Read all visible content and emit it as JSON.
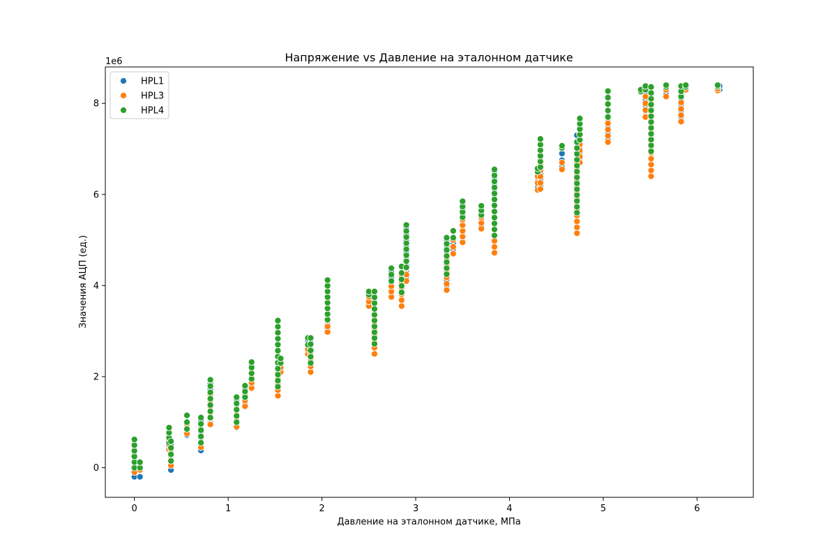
{
  "chart_data": {
    "type": "scatter",
    "title": "Напряжение vs Давление на эталонном датчике",
    "xlabel": "Давление на эталонном датчике, МПа",
    "ylabel": "Значения АЦП (ед.)",
    "y_multiplier": "1e6",
    "xlim": [
      -0.31,
      6.6
    ],
    "ylim": [
      -0.65,
      8.8
    ],
    "xticks": [
      "0",
      "1",
      "2",
      "3",
      "4",
      "5",
      "6"
    ],
    "yticks": [
      "0",
      "2",
      "4",
      "6",
      "8"
    ],
    "xtick_values": [
      0,
      1,
      2,
      3,
      4,
      5,
      6
    ],
    "ytick_values": [
      0,
      2,
      4,
      6,
      8
    ],
    "grid": false,
    "legend": "top-left",
    "series": [
      {
        "name": "HPL1",
        "color": "#1f77b4",
        "clusters": [
          {
            "x": 0.0,
            "ymin": -0.2,
            "ymax": 0.5
          },
          {
            "x": 0.06,
            "ymin": -0.2,
            "ymax": 0.1
          },
          {
            "x": 0.37,
            "ymin": 0.5,
            "ymax": 0.75
          },
          {
            "x": 0.39,
            "ymin": -0.05,
            "ymax": 0.5
          },
          {
            "x": 0.56,
            "ymin": 0.72,
            "ymax": 1.0
          },
          {
            "x": 0.71,
            "ymin": 0.38,
            "ymax": 1.05
          },
          {
            "x": 0.81,
            "ymin": 1.0,
            "ymax": 1.85
          },
          {
            "x": 1.09,
            "ymin": 0.88,
            "ymax": 1.5
          },
          {
            "x": 1.18,
            "ymin": 1.4,
            "ymax": 1.75
          },
          {
            "x": 1.25,
            "ymin": 1.8,
            "ymax": 2.25
          },
          {
            "x": 1.53,
            "ymin": 1.7,
            "ymax": 3.1
          },
          {
            "x": 1.56,
            "ymin": 2.2,
            "ymax": 2.35
          },
          {
            "x": 1.85,
            "ymin": 2.5,
            "ymax": 2.8
          },
          {
            "x": 1.88,
            "ymin": 2.2,
            "ymax": 2.75
          },
          {
            "x": 2.06,
            "ymin": 3.05,
            "ymax": 4.0
          },
          {
            "x": 2.5,
            "ymin": 3.6,
            "ymax": 3.85
          },
          {
            "x": 2.56,
            "ymin": 2.65,
            "ymax": 3.85
          },
          {
            "x": 2.74,
            "ymin": 3.9,
            "ymax": 4.3
          },
          {
            "x": 2.85,
            "ymin": 3.7,
            "ymax": 4.4
          },
          {
            "x": 2.9,
            "ymin": 4.2,
            "ymax": 5.25
          },
          {
            "x": 3.33,
            "ymin": 4.0,
            "ymax": 5.0
          },
          {
            "x": 3.4,
            "ymin": 4.8,
            "ymax": 5.2
          },
          {
            "x": 3.5,
            "ymin": 5.05,
            "ymax": 5.8
          },
          {
            "x": 3.7,
            "ymin": 5.3,
            "ymax": 5.75
          },
          {
            "x": 3.84,
            "ymin": 4.85,
            "ymax": 6.5
          },
          {
            "x": 4.3,
            "ymin": 6.15,
            "ymax": 6.55
          },
          {
            "x": 4.33,
            "ymin": 6.2,
            "ymax": 7.2
          },
          {
            "x": 4.56,
            "ymin": 6.6,
            "ymax": 7.05
          },
          {
            "x": 4.72,
            "ymin": 5.3,
            "ymax": 7.3
          },
          {
            "x": 4.75,
            "ymin": 6.8,
            "ymax": 7.6
          },
          {
            "x": 5.05,
            "ymin": 7.2,
            "ymax": 8.25
          },
          {
            "x": 5.45,
            "ymin": 7.7,
            "ymax": 8.35
          },
          {
            "x": 5.51,
            "ymin": 6.8,
            "ymax": 8.35
          },
          {
            "x": 5.67,
            "ymin": 8.2,
            "ymax": 8.38
          },
          {
            "x": 5.83,
            "ymin": 7.7,
            "ymax": 8.38
          },
          {
            "x": 5.88,
            "ymin": 8.3,
            "ymax": 8.38
          },
          {
            "x": 6.24,
            "ymin": 8.3,
            "ymax": 8.38
          }
        ]
      },
      {
        "name": "HPL3",
        "color": "#ff7f0e",
        "clusters": [
          {
            "x": 0.0,
            "ymin": -0.1,
            "ymax": 0.4
          },
          {
            "x": 0.06,
            "ymin": -0.05,
            "ymax": 0.1
          },
          {
            "x": 0.37,
            "ymin": 0.4,
            "ymax": 0.6
          },
          {
            "x": 0.39,
            "ymin": 0.05,
            "ymax": 0.4
          },
          {
            "x": 0.56,
            "ymin": 0.75,
            "ymax": 0.95
          },
          {
            "x": 0.71,
            "ymin": 0.45,
            "ymax": 0.95
          },
          {
            "x": 0.81,
            "ymin": 0.95,
            "ymax": 1.6
          },
          {
            "x": 1.09,
            "ymin": 0.9,
            "ymax": 1.3
          },
          {
            "x": 1.18,
            "ymin": 1.35,
            "ymax": 1.6
          },
          {
            "x": 1.25,
            "ymin": 1.75,
            "ymax": 2.1
          },
          {
            "x": 1.53,
            "ymin": 1.58,
            "ymax": 2.95
          },
          {
            "x": 1.56,
            "ymin": 2.1,
            "ymax": 2.3
          },
          {
            "x": 1.85,
            "ymin": 2.5,
            "ymax": 2.7
          },
          {
            "x": 1.88,
            "ymin": 2.1,
            "ymax": 2.6
          },
          {
            "x": 2.06,
            "ymin": 2.98,
            "ymax": 3.6
          },
          {
            "x": 2.5,
            "ymin": 3.55,
            "ymax": 3.75
          },
          {
            "x": 2.56,
            "ymin": 2.5,
            "ymax": 3.6
          },
          {
            "x": 2.74,
            "ymin": 3.75,
            "ymax": 4.1
          },
          {
            "x": 2.85,
            "ymin": 3.55,
            "ymax": 4.2
          },
          {
            "x": 2.9,
            "ymin": 4.1,
            "ymax": 4.8
          },
          {
            "x": 3.33,
            "ymin": 3.9,
            "ymax": 4.6
          },
          {
            "x": 3.4,
            "ymin": 4.7,
            "ymax": 5.0
          },
          {
            "x": 3.5,
            "ymin": 4.95,
            "ymax": 5.45
          },
          {
            "x": 3.7,
            "ymin": 5.25,
            "ymax": 5.5
          },
          {
            "x": 3.84,
            "ymin": 4.72,
            "ymax": 5.9
          },
          {
            "x": 4.3,
            "ymin": 6.1,
            "ymax": 6.4
          },
          {
            "x": 4.33,
            "ymin": 6.12,
            "ymax": 6.8
          },
          {
            "x": 4.56,
            "ymin": 6.55,
            "ymax": 6.7
          },
          {
            "x": 4.72,
            "ymin": 5.15,
            "ymax": 6.7
          },
          {
            "x": 4.75,
            "ymin": 6.7,
            "ymax": 7.1
          },
          {
            "x": 5.05,
            "ymin": 7.15,
            "ymax": 7.7
          },
          {
            "x": 5.45,
            "ymin": 7.7,
            "ymax": 8.15
          },
          {
            "x": 5.51,
            "ymin": 6.4,
            "ymax": 8.2
          },
          {
            "x": 5.67,
            "ymin": 8.15,
            "ymax": 8.3
          },
          {
            "x": 5.83,
            "ymin": 7.6,
            "ymax": 8.3
          },
          {
            "x": 5.88,
            "ymin": 8.3,
            "ymax": 8.36
          },
          {
            "x": 6.22,
            "ymin": 8.28,
            "ymax": 8.32
          }
        ]
      },
      {
        "name": "HPL4",
        "color": "#2ca02c",
        "clusters": [
          {
            "x": 0.0,
            "ymin": 0.0,
            "ymax": 0.62
          },
          {
            "x": 0.06,
            "ymin": 0.0,
            "ymax": 0.12
          },
          {
            "x": 0.37,
            "ymin": 0.55,
            "ymax": 0.88
          },
          {
            "x": 0.39,
            "ymin": 0.15,
            "ymax": 0.58
          },
          {
            "x": 0.56,
            "ymin": 0.85,
            "ymax": 1.15
          },
          {
            "x": 0.71,
            "ymin": 0.55,
            "ymax": 1.1
          },
          {
            "x": 0.81,
            "ymin": 1.1,
            "ymax": 1.93
          },
          {
            "x": 1.09,
            "ymin": 1.0,
            "ymax": 1.55
          },
          {
            "x": 1.18,
            "ymin": 1.55,
            "ymax": 1.8
          },
          {
            "x": 1.25,
            "ymin": 1.95,
            "ymax": 2.32
          },
          {
            "x": 1.53,
            "ymin": 1.78,
            "ymax": 3.23
          },
          {
            "x": 1.56,
            "ymin": 2.3,
            "ymax": 2.4
          },
          {
            "x": 1.85,
            "ymin": 2.7,
            "ymax": 2.85
          },
          {
            "x": 1.88,
            "ymin": 2.3,
            "ymax": 2.85
          },
          {
            "x": 2.06,
            "ymin": 3.25,
            "ymax": 4.12
          },
          {
            "x": 2.5,
            "ymin": 3.8,
            "ymax": 3.87
          },
          {
            "x": 2.56,
            "ymin": 2.72,
            "ymax": 3.87
          },
          {
            "x": 2.74,
            "ymin": 4.1,
            "ymax": 4.38
          },
          {
            "x": 2.85,
            "ymin": 3.85,
            "ymax": 4.42
          },
          {
            "x": 2.9,
            "ymin": 4.4,
            "ymax": 5.33
          },
          {
            "x": 3.33,
            "ymin": 4.25,
            "ymax": 5.05
          },
          {
            "x": 3.4,
            "ymin": 5.05,
            "ymax": 5.2
          },
          {
            "x": 3.5,
            "ymin": 5.5,
            "ymax": 5.85
          },
          {
            "x": 3.7,
            "ymin": 5.55,
            "ymax": 5.75
          },
          {
            "x": 3.84,
            "ymin": 5.1,
            "ymax": 6.55
          },
          {
            "x": 4.3,
            "ymin": 6.5,
            "ymax": 6.57
          },
          {
            "x": 4.33,
            "ymin": 6.6,
            "ymax": 7.22
          },
          {
            "x": 4.56,
            "ymin": 7.02,
            "ymax": 7.07
          },
          {
            "x": 4.72,
            "ymin": 5.6,
            "ymax": 7.15
          },
          {
            "x": 4.75,
            "ymin": 7.2,
            "ymax": 7.67
          },
          {
            "x": 5.05,
            "ymin": 7.7,
            "ymax": 8.27
          },
          {
            "x": 5.4,
            "ymin": 8.26,
            "ymax": 8.3
          },
          {
            "x": 5.45,
            "ymin": 8.3,
            "ymax": 8.38
          },
          {
            "x": 5.51,
            "ymin": 6.95,
            "ymax": 8.36
          },
          {
            "x": 5.67,
            "ymin": 8.36,
            "ymax": 8.4
          },
          {
            "x": 5.83,
            "ymin": 8.15,
            "ymax": 8.38
          },
          {
            "x": 5.88,
            "ymin": 8.36,
            "ymax": 8.4
          },
          {
            "x": 6.22,
            "ymin": 8.37,
            "ymax": 8.4
          }
        ]
      }
    ]
  }
}
